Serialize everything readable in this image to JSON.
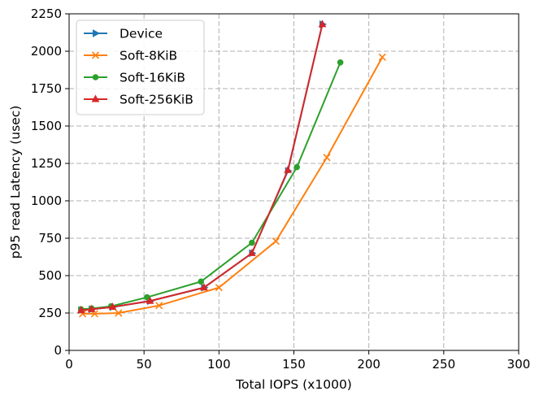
{
  "chart_data": {
    "type": "line",
    "title": "",
    "xlabel": "Total IOPS (x1000)",
    "ylabel": "p95 read Latency (usec)",
    "xlim": [
      0,
      300
    ],
    "ylim": [
      0,
      2250
    ],
    "xticks": [
      0,
      50,
      100,
      150,
      200,
      250,
      300
    ],
    "yticks": [
      0,
      250,
      500,
      750,
      1000,
      1250,
      1500,
      1750,
      2000,
      2250
    ],
    "grid": true,
    "grid_style": "dashed",
    "legend_position": "top-left",
    "series": [
      {
        "name": "Device",
        "color": "#1f77b4",
        "marker": "triangle-right",
        "x": [
          8,
          15,
          29,
          54,
          90,
          122,
          146,
          169
        ],
        "y": [
          270,
          275,
          290,
          330,
          420,
          650,
          1200,
          2180
        ]
      },
      {
        "name": "Soft-8KiB",
        "color": "#ff7f0e",
        "marker": "x",
        "x": [
          9,
          17,
          33,
          60,
          100,
          138,
          172,
          209
        ],
        "y": [
          245,
          245,
          250,
          300,
          420,
          730,
          1290,
          1960
        ]
      },
      {
        "name": "Soft-16KiB",
        "color": "#2ca02c",
        "marker": "circle",
        "x": [
          8,
          15,
          28,
          52,
          88,
          122,
          152,
          181
        ],
        "y": [
          275,
          280,
          295,
          355,
          460,
          720,
          1225,
          1925
        ]
      },
      {
        "name": "Soft-256KiB",
        "color": "#d62728",
        "marker": "triangle-up",
        "x": [
          8,
          15,
          29,
          54,
          90,
          122,
          146,
          169
        ],
        "y": [
          268,
          275,
          290,
          330,
          420,
          650,
          1205,
          2180
        ]
      }
    ]
  }
}
